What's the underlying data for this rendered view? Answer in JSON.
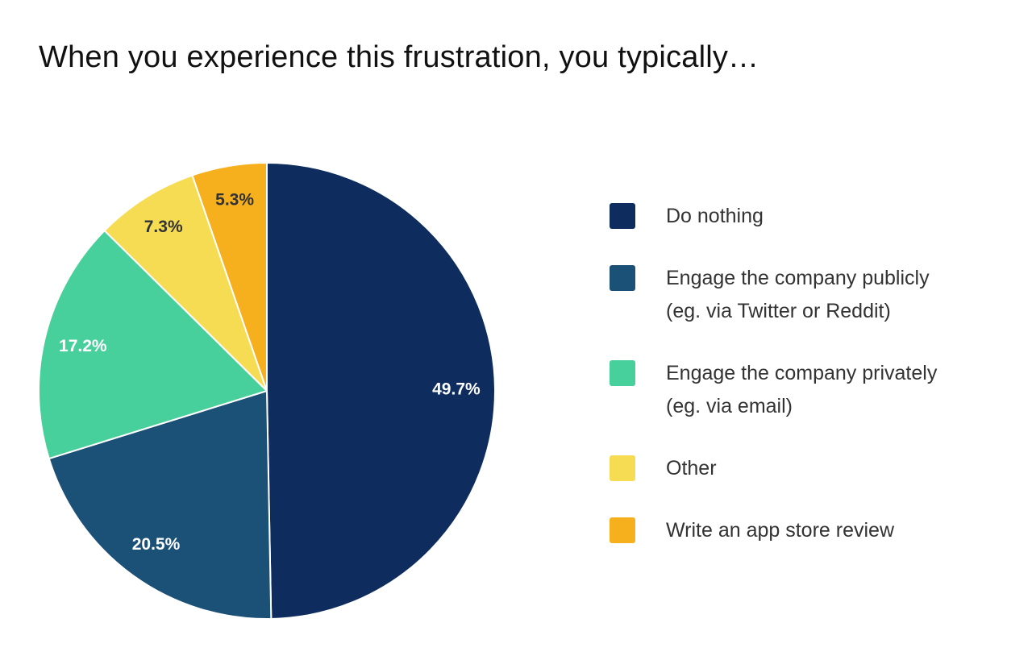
{
  "chart_data": {
    "type": "pie",
    "title": "When you experience this frustration, you typically…",
    "legend_position": "right",
    "slices": [
      {
        "label": "Do nothing",
        "label_lines": [
          "Do nothing"
        ],
        "value": 49.7,
        "display_value": "49.7%",
        "color": "#0e2d5e",
        "text_color": "#ffffff"
      },
      {
        "label": "Engage the company publicly (eg. via Twitter or Reddit)",
        "label_lines": [
          "Engage the company publicly",
          "(eg. via Twitter or Reddit)"
        ],
        "value": 20.5,
        "display_value": "20.5%",
        "color": "#1b5077",
        "text_color": "#ffffff"
      },
      {
        "label": "Engage the company privately (eg. via email)",
        "label_lines": [
          "Engage the company privately",
          "(eg. via email)"
        ],
        "value": 17.2,
        "display_value": "17.2%",
        "color": "#47d09b",
        "text_color": "#ffffff"
      },
      {
        "label": "Other",
        "label_lines": [
          "Other"
        ],
        "value": 7.3,
        "display_value": "7.3%",
        "color": "#f5dc52",
        "text_color": "#333333"
      },
      {
        "label": "Write an app store review",
        "label_lines": [
          "Write an app store review"
        ],
        "value": 5.3,
        "display_value": "5.3%",
        "color": "#f6b01e",
        "text_color": "#333333"
      }
    ]
  }
}
